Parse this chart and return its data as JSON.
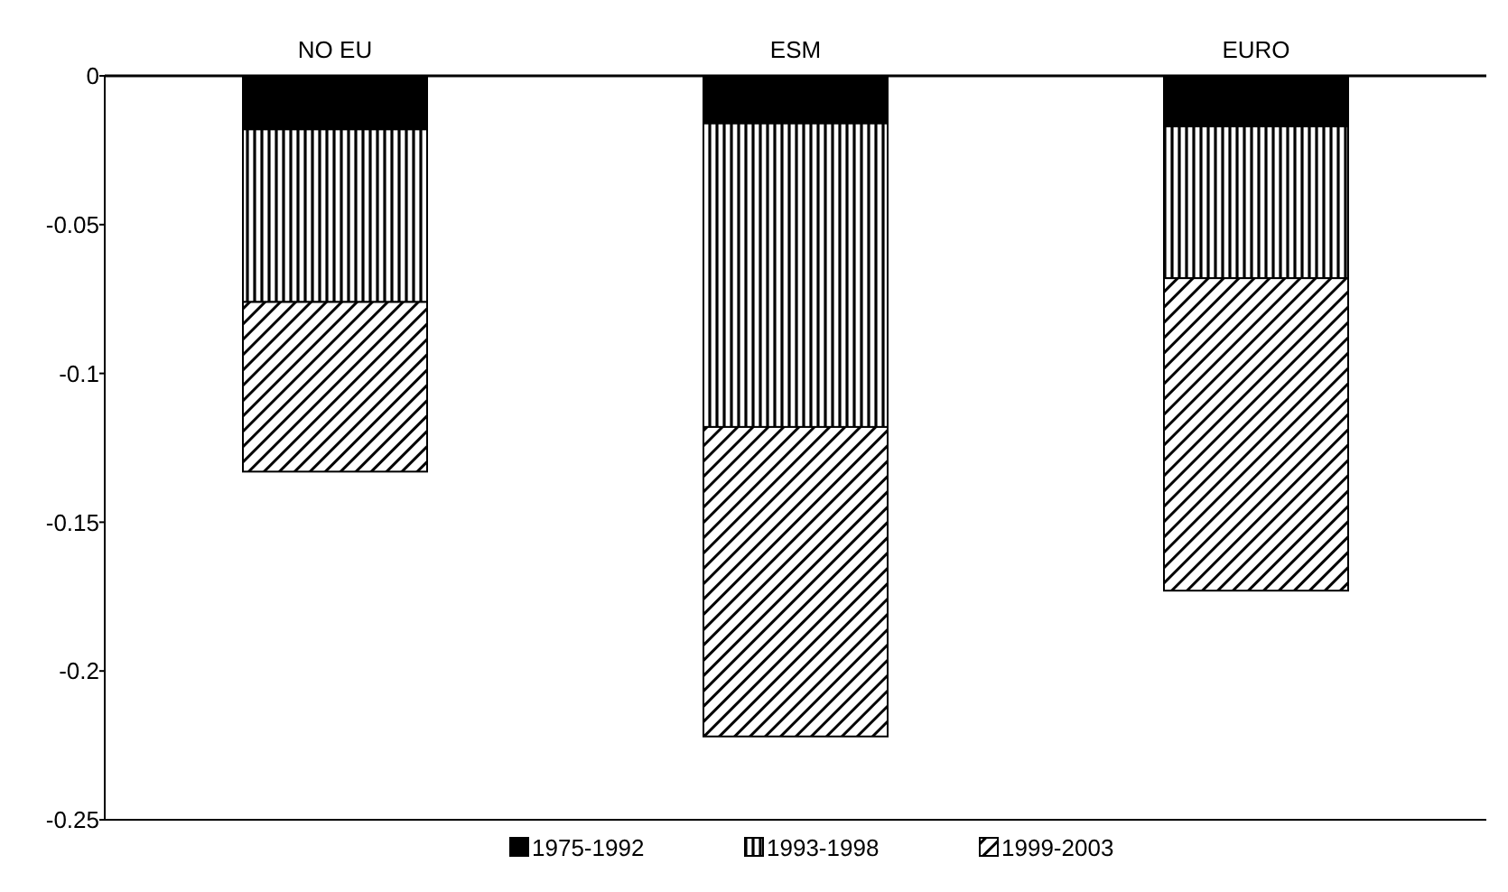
{
  "chart_data": {
    "type": "bar",
    "stacked": true,
    "categories": [
      "NO EU",
      "ESM",
      "EURO"
    ],
    "series": [
      {
        "name": "1975-1992",
        "color": "#000000",
        "values": [
          -0.018,
          -0.016,
          -0.017
        ]
      },
      {
        "name": "1993-1998",
        "color": "#000000",
        "values": [
          -0.058,
          -0.102,
          -0.051
        ]
      },
      {
        "name": "1999-2003",
        "color": "#000000",
        "values": [
          -0.057,
          -0.104,
          -0.105
        ]
      }
    ],
    "ylim": [
      -0.25,
      0
    ],
    "yticks": [
      0,
      -0.05,
      -0.1,
      -0.15,
      -0.2,
      -0.25
    ],
    "grid": false,
    "legend": "bottom"
  }
}
